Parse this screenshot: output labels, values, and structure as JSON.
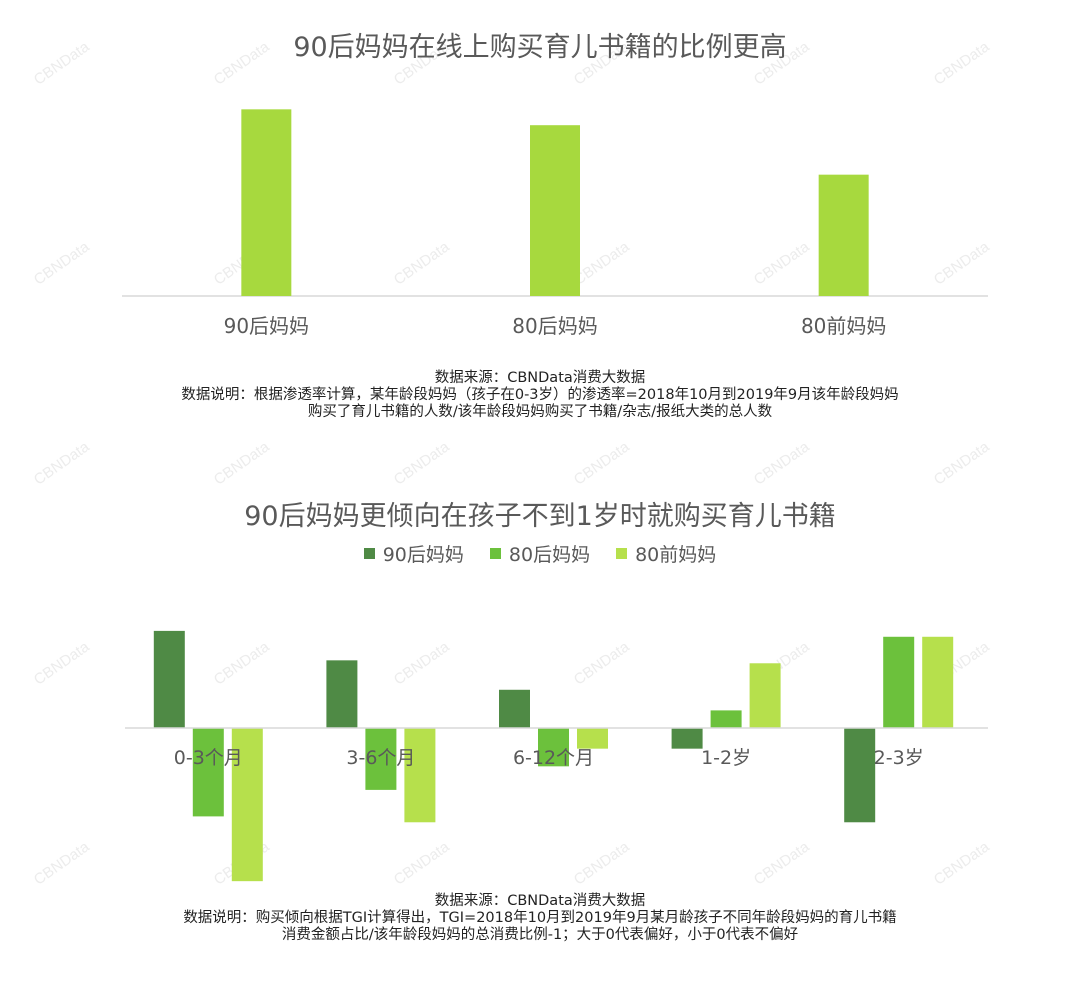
{
  "watermark": "CBNData",
  "chart1": {
    "title": "90后妈妈在线上购买育儿书籍的比例更高",
    "source": "数据来源：CBNData消费大数据",
    "note_lines": [
      "数据说明：根据渗透率计算，某年龄段妈妈（孩子在0-3岁）的渗透率=2018年10月到2019年9月该年龄段妈妈",
      "购买了育儿书籍的人数/该年龄段妈妈购买了书籍/杂志/报纸大类的总人数"
    ]
  },
  "chart2": {
    "title": "90后妈妈更倾向在孩子不到1岁时就购买育儿书籍",
    "source": "数据来源：CBNData消费大数据",
    "note_lines": [
      "数据说明：购买倾向根据TGI计算得出，TGI=2018年10月到2019年9月某月龄孩子不同年龄段妈妈的育儿书籍",
      "消费金额占比/该年龄段妈妈的总消费比例-1；大于0代表偏好，小于0代表不偏好"
    ]
  },
  "chart_data": [
    {
      "type": "bar",
      "title": "90后妈妈在线上购买育儿书籍的比例更高",
      "categories": [
        "90后妈妈",
        "80后妈妈",
        "80前妈妈"
      ],
      "values": [
        100,
        91.5,
        65
      ],
      "ylim": [
        0,
        105
      ],
      "grid": false,
      "color": "#a7d93e"
    },
    {
      "type": "bar",
      "title": "90后妈妈更倾向在孩子不到1岁时就购买育儿书籍",
      "categories": [
        "0-3个月",
        "3-6个月",
        "6-12个月",
        "1-2岁",
        "2-3岁"
      ],
      "series": [
        {
          "name": "90后妈妈",
          "color": "#4f8a45",
          "values": [
            0.33,
            0.23,
            0.13,
            -0.07,
            -0.32
          ]
        },
        {
          "name": "80后妈妈",
          "color": "#6cc13c",
          "values": [
            -0.3,
            -0.21,
            -0.13,
            0.06,
            0.31
          ]
        },
        {
          "name": "80前妈妈",
          "color": "#b6e04c",
          "values": [
            -0.52,
            -0.32,
            -0.07,
            0.22,
            0.31
          ]
        }
      ],
      "ylim": [
        -0.55,
        0.35
      ],
      "grid": false,
      "legend": "top-center"
    }
  ]
}
